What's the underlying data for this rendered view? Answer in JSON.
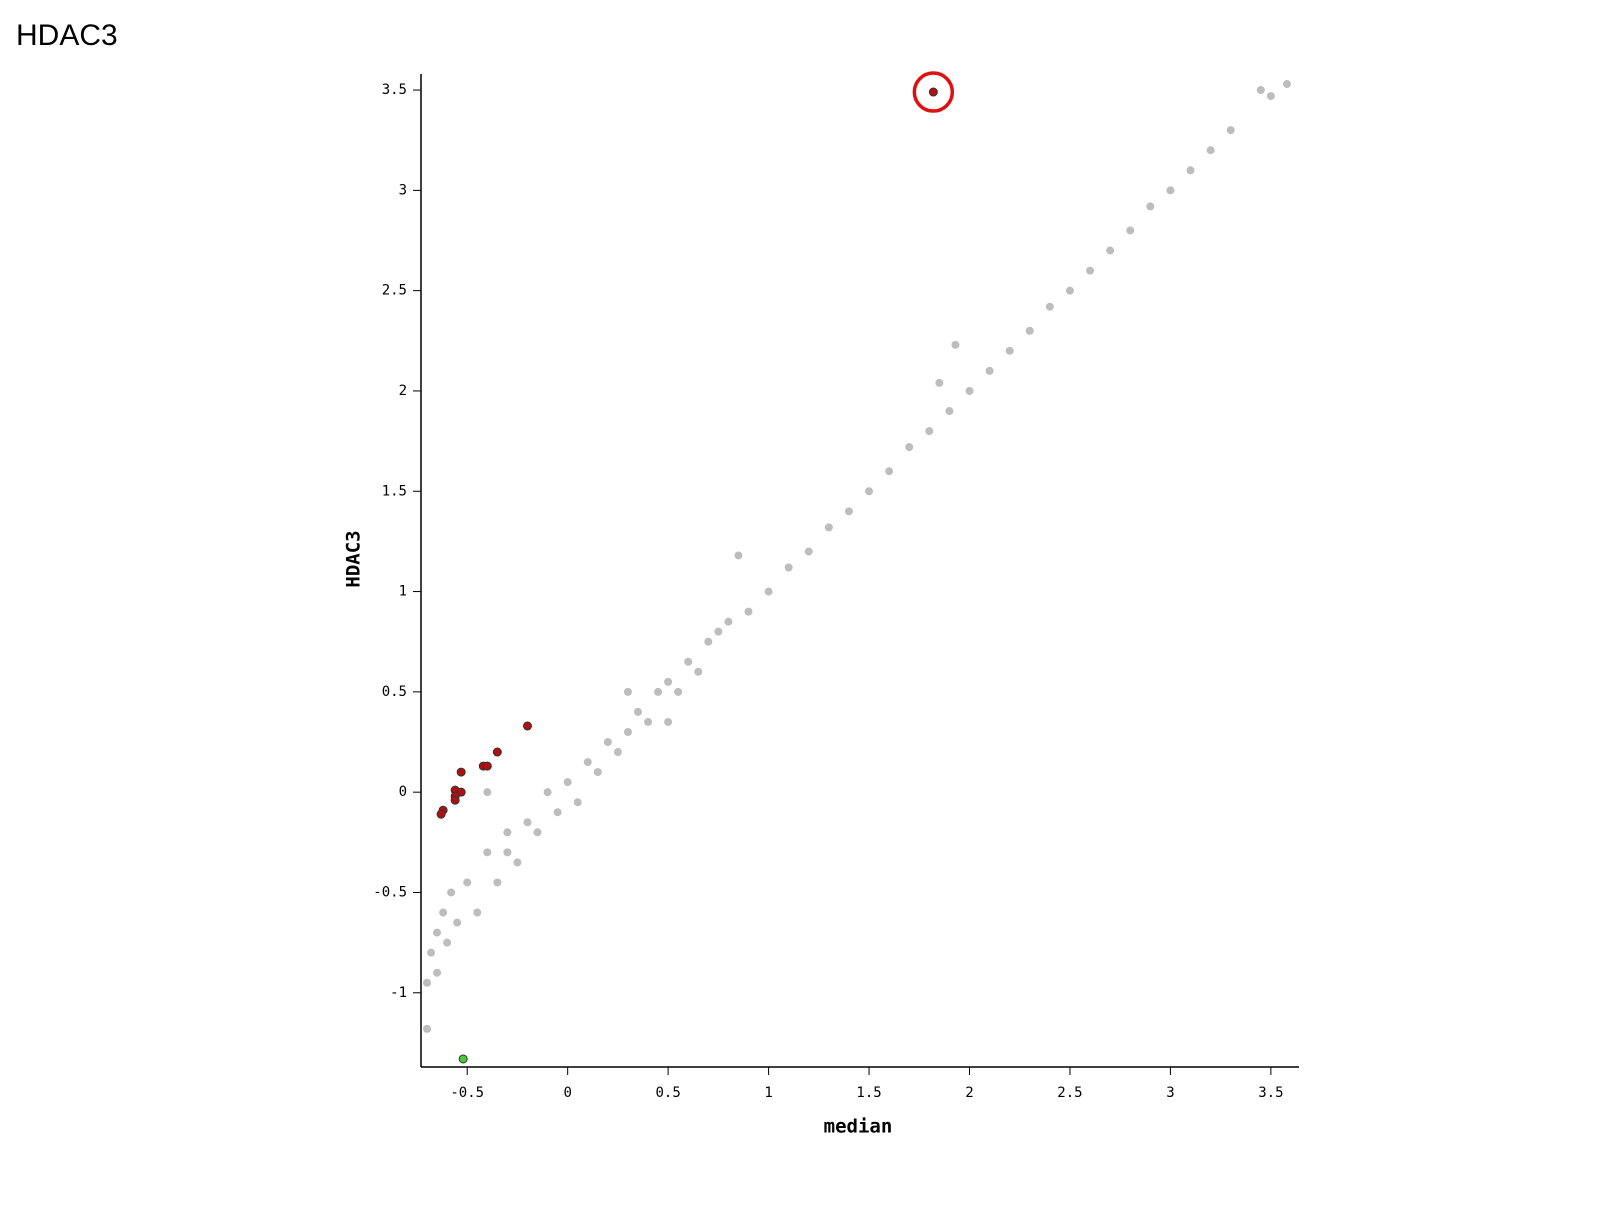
{
  "chart_data": {
    "type": "scatter",
    "title": "HDAC3",
    "x_label": "median",
    "y_label": "HDAC3",
    "xlim": [
      -0.73,
      3.64
    ],
    "ylim": [
      -1.37,
      3.58
    ],
    "xticks": [
      -0.5,
      0,
      0.5,
      1,
      1.5,
      2,
      2.5,
      3,
      3.5
    ],
    "yticks": [
      -1,
      -0.5,
      0,
      0.5,
      1,
      1.5,
      2,
      2.5,
      3,
      3.5
    ],
    "series": [
      {
        "color": "#bdbdbd",
        "x": [
          -0.7,
          -0.68,
          -0.65,
          -0.62,
          -0.6,
          -0.58,
          -0.55,
          -0.5,
          -0.45,
          -0.4,
          -0.35,
          -0.3,
          -0.25,
          -0.2,
          -0.15,
          -0.1,
          -0.05,
          0,
          0.05,
          0.1,
          0.15,
          0.2,
          0.25,
          0.3,
          0.35,
          0.4,
          0.45,
          0.5,
          0.55,
          0.6,
          0.65,
          0.7,
          0.75,
          0.8,
          0.9,
          1.0,
          1.1,
          1.2,
          1.3,
          1.4,
          1.5,
          1.6,
          1.7,
          1.8,
          1.9,
          2.0,
          2.1,
          2.2,
          2.3,
          2.4,
          2.5,
          2.6,
          2.7,
          2.8,
          2.9,
          3.0,
          3.1,
          3.2,
          3.3,
          3.45,
          3.5,
          3.58,
          1.93,
          1.85,
          -0.7,
          0.85,
          -0.65,
          -0.4,
          -0.3,
          0.3,
          0.5
        ],
        "values": [
          -0.95,
          -0.8,
          -0.7,
          -0.6,
          -0.75,
          -0.5,
          -0.65,
          -0.45,
          -0.6,
          -0.3,
          -0.45,
          -0.2,
          -0.35,
          -0.15,
          -0.2,
          0.0,
          -0.1,
          0.05,
          -0.05,
          0.15,
          0.1,
          0.25,
          0.2,
          0.3,
          0.4,
          0.35,
          0.5,
          0.55,
          0.5,
          0.65,
          0.6,
          0.75,
          0.8,
          0.85,
          0.9,
          1.0,
          1.12,
          1.2,
          1.32,
          1.4,
          1.5,
          1.6,
          1.72,
          1.8,
          1.9,
          2.0,
          2.1,
          2.2,
          2.3,
          2.42,
          2.5,
          2.6,
          2.7,
          2.8,
          2.92,
          3.0,
          3.1,
          3.2,
          3.3,
          3.5,
          3.47,
          3.53,
          2.23,
          2.04,
          -1.18,
          1.18,
          -0.9,
          0.0,
          -0.3,
          0.5,
          0.35
        ]
      },
      {
        "color": "#b01010",
        "x": [
          1.82,
          -0.2,
          -0.35,
          -0.42,
          -0.4,
          -0.53,
          -0.56,
          -0.53,
          -0.56,
          -0.56,
          -0.62,
          -0.63
        ],
        "values": [
          3.49,
          0.33,
          0.2,
          0.13,
          0.13,
          0.1,
          0.01,
          0.0,
          -0.02,
          -0.04,
          -0.09,
          -0.11
        ]
      },
      {
        "color": "#44cc33",
        "x": [
          -0.52
        ],
        "values": [
          -1.33
        ]
      }
    ]
  }
}
